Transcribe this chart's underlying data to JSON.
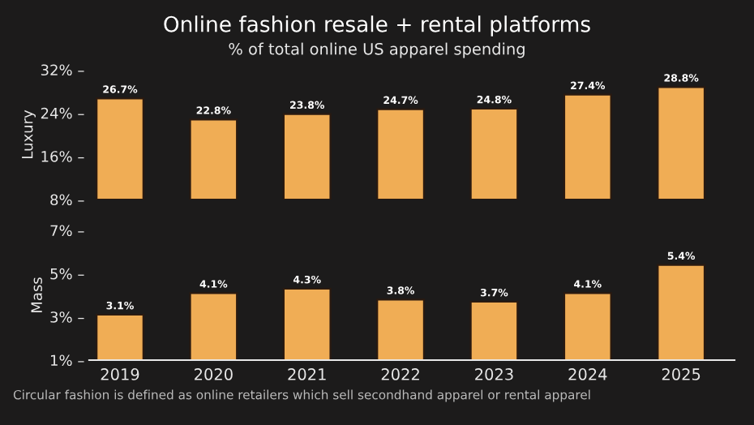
{
  "chart_data": [
    {
      "type": "bar",
      "title": "Online fashion resale + rental platforms",
      "subtitle": "% of total online US apparel spending",
      "ylabel": "Luxury",
      "categories": [
        "2019",
        "2020",
        "2021",
        "2022",
        "2023",
        "2024",
        "2025"
      ],
      "values": [
        26.7,
        22.8,
        23.8,
        24.7,
        24.8,
        27.4,
        28.8
      ],
      "value_labels": [
        "26.7%",
        "22.8%",
        "23.8%",
        "24.7%",
        "24.8%",
        "27.4%",
        "28.8%"
      ],
      "color": "#f0ad55",
      "ylim": [
        8,
        32
      ],
      "yticks": [
        {
          "value": 8,
          "label": "8% –"
        },
        {
          "value": 16,
          "label": "16% –"
        },
        {
          "value": 24,
          "label": "24% –"
        },
        {
          "value": 32,
          "label": "32% –"
        }
      ],
      "tick_labels": "y",
      "grid": false
    },
    {
      "type": "bar",
      "ylabel": "Mass",
      "categories": [
        "2019",
        "2020",
        "2021",
        "2022",
        "2023",
        "2024",
        "2025"
      ],
      "values": [
        3.1,
        4.1,
        4.3,
        3.8,
        3.7,
        4.1,
        5.4
      ],
      "value_labels": [
        "3.1%",
        "4.1%",
        "4.3%",
        "3.8%",
        "3.7%",
        "4.1%",
        "5.4%"
      ],
      "color": "#f0ad55",
      "ylim": [
        1,
        7
      ],
      "yticks": [
        {
          "value": 1,
          "label": "1% –"
        },
        {
          "value": 3,
          "label": "3% –"
        },
        {
          "value": 5,
          "label": "5% –"
        },
        {
          "value": 7,
          "label": "7% –"
        }
      ],
      "grid": false,
      "annotations": [
        "Circular fashion is defined as online retailers which sell secondhand apparel or rental apparel"
      ]
    }
  ]
}
